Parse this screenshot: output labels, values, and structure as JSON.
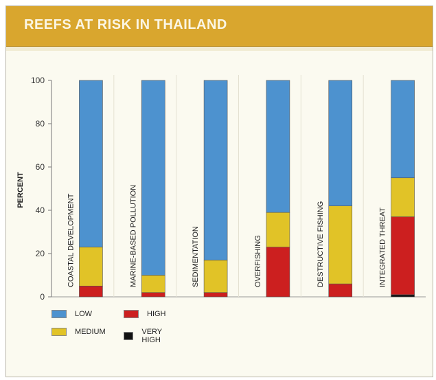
{
  "title": "REEFS AT RISK IN THAILAND",
  "colors": {
    "title_bar": "#d9a62e",
    "low": "#4d92cf",
    "medium": "#e1c327",
    "high": "#cc1f1f",
    "very_high": "#111111"
  },
  "chart_data": {
    "type": "bar",
    "stacked": true,
    "ylabel": "PERCENT",
    "ylim": [
      0,
      100
    ],
    "yticks": [
      "0",
      "20",
      "40",
      "60",
      "80",
      "100"
    ],
    "categories": [
      "COASTAL DEVELOPMENT",
      "MARINE-BASED POLLUTION",
      "SEDIMENTATION",
      "OVERFISHING",
      "DESTRUCTIVE FISHING",
      "INTEGRATED THREAT"
    ],
    "series": [
      {
        "name": "VERY HIGH",
        "color": "#111111",
        "values": [
          0,
          0,
          0,
          0,
          0,
          1
        ]
      },
      {
        "name": "HIGH",
        "color": "#cc1f1f",
        "values": [
          5,
          2,
          2,
          23,
          6,
          36
        ]
      },
      {
        "name": "MEDIUM",
        "color": "#e1c327",
        "values": [
          18,
          8,
          15,
          16,
          36,
          18
        ]
      },
      {
        "name": "LOW",
        "color": "#4d92cf",
        "values": [
          77,
          90,
          83,
          61,
          58,
          45
        ]
      }
    ],
    "legend": [
      {
        "key": "low",
        "label": "LOW"
      },
      {
        "key": "high",
        "label": "HIGH"
      },
      {
        "key": "medium",
        "label": "MEDIUM"
      },
      {
        "key": "very_high",
        "label": "VERY HIGH"
      }
    ],
    "grid": false
  }
}
